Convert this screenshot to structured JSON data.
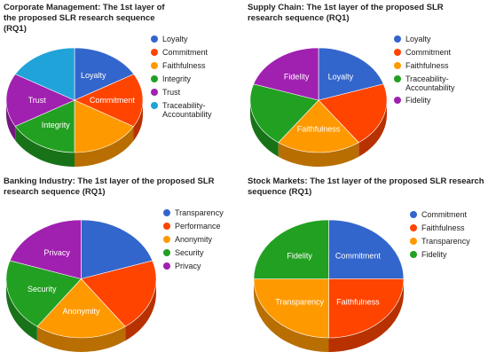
{
  "colors": {
    "blue": "#3366cc",
    "red": "#ff4400",
    "orange": "#ff9900",
    "green": "#22a022",
    "purple": "#a020b0",
    "cyan": "#1fa3d8"
  },
  "chart_data": [
    {
      "type": "pie",
      "title": "Corporate Management: The 1st layer of the proposed SLR research sequence (RQ1)",
      "categories": [
        "Loyalty",
        "Commitment",
        "Faithfulness",
        "Integrity",
        "Trust",
        "Traceability-Accountability"
      ],
      "values": [
        16.7,
        16.7,
        16.6,
        16.7,
        16.6,
        16.7
      ],
      "colors": [
        "#3366cc",
        "#ff4400",
        "#ff9900",
        "#22a022",
        "#a020b0",
        "#1fa3d8"
      ],
      "slice_labels": [
        "Loyalty",
        "Commitment",
        "",
        "Integrity",
        "Trust",
        ""
      ],
      "legend_position": "right",
      "style": "3d"
    },
    {
      "type": "pie",
      "title": "Supply Chain: The 1st layer of the proposed SLR research sequence (RQ1)",
      "categories": [
        "Loyalty",
        "Commitment",
        "Faithfulness",
        "Traceability-Accountability",
        "Fidelity"
      ],
      "values": [
        20,
        20,
        20,
        20,
        20
      ],
      "colors": [
        "#3366cc",
        "#ff4400",
        "#ff9900",
        "#22a022",
        "#a020b0"
      ],
      "slice_labels": [
        "Loyalty",
        "",
        "Faithfulness",
        "",
        "Fidelity"
      ],
      "legend_position": "right",
      "style": "3d"
    },
    {
      "type": "pie",
      "title": "Banking Industry: The 1st layer of the proposed SLR research sequence (RQ1)",
      "categories": [
        "Transparency",
        "Performance",
        "Anonymity",
        "Security",
        "Privacy"
      ],
      "values": [
        20,
        20,
        20,
        20,
        20
      ],
      "colors": [
        "#3366cc",
        "#ff4400",
        "#ff9900",
        "#22a022",
        "#a020b0"
      ],
      "slice_labels": [
        "",
        "",
        "Anonymity",
        "Security",
        "Privacy"
      ],
      "legend_position": "right",
      "style": "3d"
    },
    {
      "type": "pie",
      "title": "Stock Markets: The 1st layer of the proposed SLR research sequence (RQ1)",
      "categories": [
        "Commitment",
        "Faithfulness",
        "Transparency",
        "Fidelity"
      ],
      "values": [
        25,
        25,
        25,
        25
      ],
      "colors": [
        "#3366cc",
        "#ff4400",
        "#ff9900",
        "#22a022"
      ],
      "slice_labels": [
        "Commitment",
        "Faithfulness",
        "Transparency",
        "Fidelity"
      ],
      "legend_position": "right",
      "style": "3d"
    }
  ]
}
